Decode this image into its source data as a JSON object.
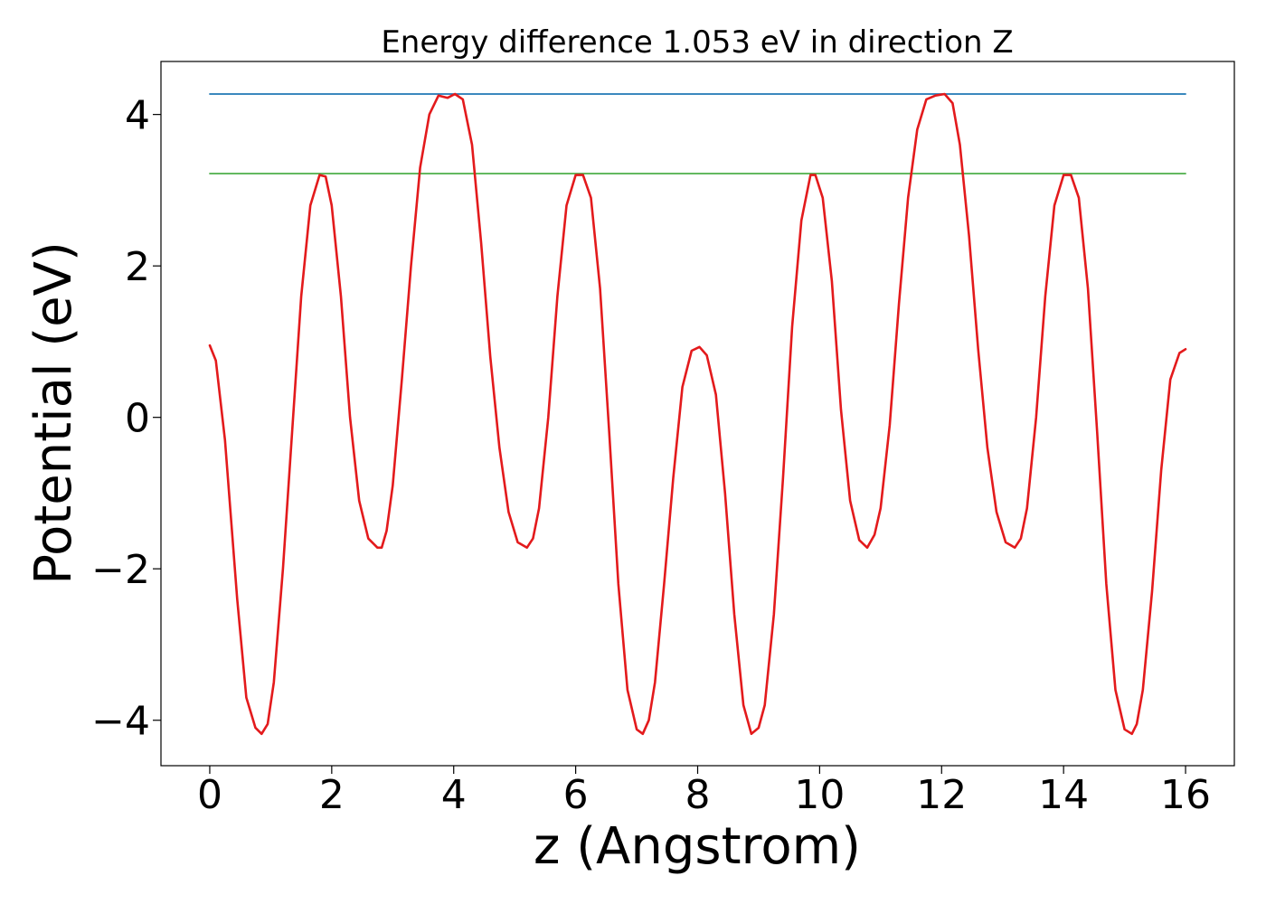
{
  "chart_data": {
    "type": "line",
    "title": "Energy difference 1.053 eV in direction Z",
    "xlabel": "z (Angstrom)",
    "ylabel": "Potential (eV)",
    "xlim": [
      -0.8,
      16.8
    ],
    "ylim": [
      -4.6,
      4.7
    ],
    "x_ticks": [
      0,
      2,
      4,
      6,
      8,
      10,
      12,
      14,
      16
    ],
    "x_tick_labels": [
      "0",
      "2",
      "4",
      "6",
      "8",
      "10",
      "12",
      "14",
      "16"
    ],
    "y_ticks": [
      -4,
      -2,
      0,
      2,
      4
    ],
    "y_tick_labels": [
      "−4",
      "−2",
      "0",
      "2",
      "4"
    ],
    "grid": false,
    "series": [
      {
        "name": "potential",
        "color": "#e31a1c",
        "style": "solid",
        "x": [
          0.0,
          0.1,
          0.25,
          0.45,
          0.6,
          0.75,
          0.85,
          0.95,
          1.05,
          1.2,
          1.35,
          1.5,
          1.65,
          1.8,
          1.9,
          2.0,
          2.15,
          2.3,
          2.45,
          2.6,
          2.75,
          2.82,
          2.9,
          3.0,
          3.15,
          3.3,
          3.45,
          3.6,
          3.75,
          3.9,
          4.02,
          4.15,
          4.3,
          4.45,
          4.6,
          4.75,
          4.9,
          5.05,
          5.2,
          5.3,
          5.4,
          5.55,
          5.7,
          5.85,
          6.0,
          6.12,
          6.25,
          6.4,
          6.55,
          6.7,
          6.85,
          7.0,
          7.1,
          7.2,
          7.3,
          7.45,
          7.6,
          7.75,
          7.9,
          8.03,
          8.15,
          8.3,
          8.45,
          8.6,
          8.75,
          8.88,
          9.0,
          9.1,
          9.25,
          9.4,
          9.55,
          9.7,
          9.85,
          9.93,
          10.05,
          10.2,
          10.35,
          10.5,
          10.65,
          10.78,
          10.9,
          11.0,
          11.15,
          11.3,
          11.45,
          11.6,
          11.75,
          11.9,
          12.05,
          12.18,
          12.3,
          12.45,
          12.6,
          12.75,
          12.9,
          13.05,
          13.2,
          13.3,
          13.4,
          13.55,
          13.7,
          13.85,
          14.0,
          14.12,
          14.25,
          14.4,
          14.55,
          14.7,
          14.85,
          15.0,
          15.12,
          15.2,
          15.3,
          15.45,
          15.6,
          15.75,
          15.9,
          16.0
        ],
        "y": [
          0.95,
          0.75,
          -0.3,
          -2.4,
          -3.7,
          -4.1,
          -4.18,
          -4.05,
          -3.5,
          -2.0,
          -0.2,
          1.6,
          2.8,
          3.2,
          3.18,
          2.8,
          1.6,
          0.0,
          -1.1,
          -1.6,
          -1.72,
          -1.72,
          -1.5,
          -0.9,
          0.5,
          2.0,
          3.3,
          4.0,
          4.25,
          4.22,
          4.27,
          4.2,
          3.6,
          2.3,
          0.8,
          -0.4,
          -1.25,
          -1.65,
          -1.72,
          -1.6,
          -1.2,
          0.0,
          1.6,
          2.8,
          3.2,
          3.2,
          2.9,
          1.7,
          -0.2,
          -2.2,
          -3.6,
          -4.12,
          -4.18,
          -4.0,
          -3.5,
          -2.2,
          -0.8,
          0.4,
          0.88,
          0.93,
          0.82,
          0.3,
          -1.0,
          -2.6,
          -3.8,
          -4.18,
          -4.1,
          -3.8,
          -2.6,
          -0.8,
          1.2,
          2.6,
          3.2,
          3.2,
          2.9,
          1.8,
          0.1,
          -1.1,
          -1.62,
          -1.72,
          -1.55,
          -1.2,
          -0.1,
          1.5,
          2.9,
          3.8,
          4.2,
          4.25,
          4.27,
          4.15,
          3.6,
          2.4,
          0.9,
          -0.4,
          -1.25,
          -1.65,
          -1.72,
          -1.6,
          -1.2,
          0.0,
          1.6,
          2.8,
          3.2,
          3.2,
          2.9,
          1.7,
          -0.2,
          -2.2,
          -3.6,
          -4.12,
          -4.18,
          -4.05,
          -3.6,
          -2.3,
          -0.7,
          0.5,
          0.85,
          0.9
        ]
      },
      {
        "name": "upper-level",
        "color": "#1f77b4",
        "style": "solid",
        "x": [
          0.0,
          16.0
        ],
        "y": [
          4.27,
          4.27
        ]
      },
      {
        "name": "lower-level",
        "color": "#4daf4a",
        "style": "solid",
        "x": [
          0.0,
          16.0
        ],
        "y": [
          3.22,
          3.22
        ]
      }
    ]
  }
}
